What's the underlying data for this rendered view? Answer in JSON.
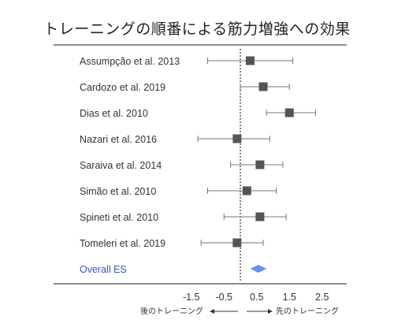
{
  "chart_data": {
    "type": "forest",
    "title": "トレーニングの順番による筋力増強への効果",
    "studies": [
      {
        "label": "Assumpção et al. 2013",
        "es": 0.3,
        "ci": [
          -1.0,
          1.6
        ]
      },
      {
        "label": "Cardozo et al. 2019",
        "es": 0.7,
        "ci": [
          0.0,
          1.5
        ]
      },
      {
        "label": "Dias et al. 2010",
        "es": 1.5,
        "ci": [
          0.8,
          2.3
        ]
      },
      {
        "label": "Nazari et al. 2016",
        "es": -0.1,
        "ci": [
          -1.3,
          0.9
        ]
      },
      {
        "label": "Saraiva et al. 2014",
        "es": 0.6,
        "ci": [
          -0.3,
          1.3
        ]
      },
      {
        "label": "Simão et al. 2010",
        "es": 0.2,
        "ci": [
          -1.0,
          1.1
        ]
      },
      {
        "label": "Spineti et al. 2010",
        "es": 0.6,
        "ci": [
          -0.5,
          1.4
        ]
      },
      {
        "label": "Tomeleri et al. 2019",
        "es": -0.1,
        "ci": [
          -1.2,
          0.7
        ]
      }
    ],
    "overall": {
      "label": "Overall ES",
      "es": 0.55,
      "ci": [
        0.3,
        0.8
      ]
    },
    "x_ticks": [
      -1.5,
      -0.5,
      0.5,
      1.5,
      2.5
    ],
    "x_tick_labels": [
      "-1.5",
      "-0.5",
      "0.5",
      "1.5",
      "2.5"
    ],
    "reference_line": 0,
    "direction_labels": {
      "left": "後のトレーニング",
      "right": "先のトレーニング"
    },
    "colors": {
      "marker": "#555555",
      "overall": "#6b8ff0",
      "overall_label": "#3553c8",
      "text": "#333333"
    }
  }
}
